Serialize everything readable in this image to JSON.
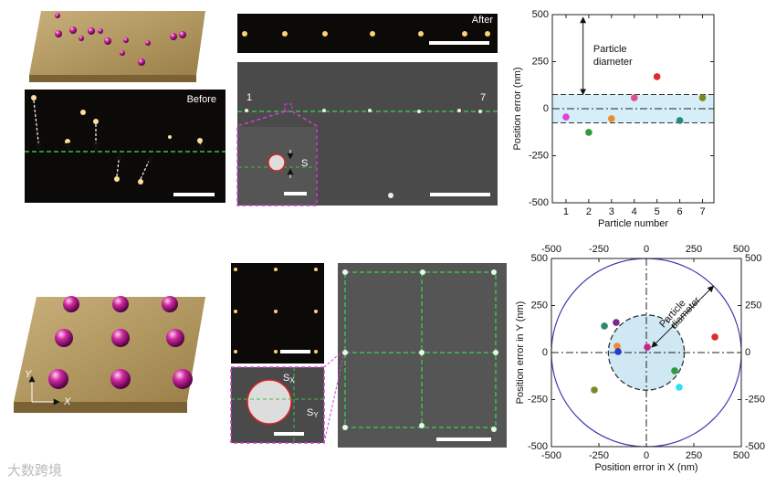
{
  "chart_data": [
    {
      "type": "scatter",
      "x_label": "Particle number",
      "y_label": "Position error (nm)",
      "xlim": [
        0.4,
        7.5
      ],
      "ylim": [
        -500,
        500
      ],
      "xticks": [
        1,
        2,
        3,
        4,
        5,
        6,
        7
      ],
      "yticks": [
        -500,
        -250,
        0,
        250,
        500
      ],
      "band": [
        -75,
        75
      ],
      "annotation_lines": [
        "Particle",
        "diameter"
      ],
      "series": [
        {
          "x": [
            1,
            2,
            3,
            4,
            5,
            6,
            7
          ],
          "values": [
            -44,
            -126,
            -53,
            58,
            170,
            -63,
            58
          ],
          "point_colors": [
            "#e040e0",
            "#2e9a3a",
            "#f08a30",
            "#e84a8a",
            "#e02a2a",
            "#2a8a7a",
            "#7a8a1a"
          ]
        }
      ]
    },
    {
      "type": "scatter",
      "x_label": "Position error in X (nm)",
      "y_label": "Position error in Y (nm)",
      "xlim": [
        -500,
        500
      ],
      "ylim": [
        -500,
        500
      ],
      "xticks": [
        -500,
        -250,
        0,
        250,
        500
      ],
      "yticks": [
        -500,
        -250,
        0,
        250,
        500
      ],
      "mirror_labels": true,
      "crosshair": true,
      "circles": [
        500,
        200
      ],
      "annotation_lines": [
        "Particle",
        "diameter"
      ],
      "series": [
        {
          "x": [
            5,
            -159,
            -221,
            -154,
            -149,
            361,
            149,
            173,
            -274
          ],
          "values": [
            29,
            160,
            141,
            34,
            5,
            83,
            -97,
            -184,
            -199
          ],
          "point_colors": [
            "#d0208a",
            "#7a2a8a",
            "#2a8a6a",
            "#f08a30",
            "#2a3ad0",
            "#e02a2a",
            "#2e9a3a",
            "#30e0f0",
            "#7a8a2a"
          ]
        }
      ]
    }
  ],
  "labels": {
    "before": "Before",
    "after": "After",
    "p1": "1",
    "p7": "7",
    "s": "S",
    "sx": "S",
    "sx_sub": "X",
    "sy": "S",
    "sy_sub": "Y",
    "axis_y": "Y",
    "axis_x": "X",
    "watermark": "大数跨境"
  }
}
